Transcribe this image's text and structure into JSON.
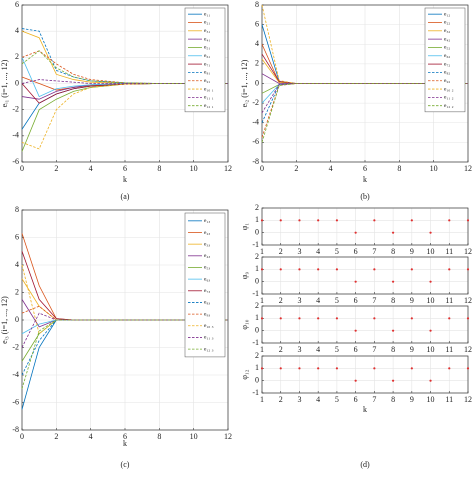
{
  "chart_data": [
    {
      "type": "line",
      "caption": "(a)",
      "x_label": "k",
      "y_label": "eᵢ₁ (i=1, ..., 12)",
      "x": [
        0,
        1,
        2,
        3,
        4,
        6,
        8,
        10,
        12
      ],
      "xlim": [
        0,
        12
      ],
      "xticks": [
        0,
        2,
        4,
        6,
        8,
        10,
        12
      ],
      "ylim": [
        -6,
        6
      ],
      "yticks": [
        -6,
        -4,
        -2,
        0,
        2,
        4,
        6
      ],
      "grid": true,
      "legend": "upper right",
      "series": [
        {
          "name": "e₁₁",
          "color": "#0072BD",
          "style": "solid",
          "values": [
            -3.5,
            -1.5,
            -0.8,
            -0.4,
            -0.2,
            -0.05,
            0,
            0,
            0
          ]
        },
        {
          "name": "e₂₁",
          "color": "#D95319",
          "style": "solid",
          "values": [
            0.5,
            0,
            -0.5,
            -0.3,
            -0.15,
            -0.04,
            0,
            0,
            0
          ]
        },
        {
          "name": "e₃₁",
          "color": "#EDB120",
          "style": "solid",
          "values": [
            4,
            3.5,
            0.7,
            0.3,
            0.1,
            0.02,
            0,
            0,
            0
          ]
        },
        {
          "name": "e₄₁",
          "color": "#7E2F8E",
          "style": "solid",
          "values": [
            -1,
            -1.2,
            -0.6,
            -0.3,
            -0.1,
            0,
            0,
            0,
            0
          ]
        },
        {
          "name": "e₅₁",
          "color": "#77AC30",
          "style": "solid",
          "values": [
            -5.2,
            -2,
            -1.2,
            -0.6,
            -0.3,
            -0.05,
            0,
            0,
            0
          ]
        },
        {
          "name": "e₆₁",
          "color": "#4DBEEE",
          "style": "solid",
          "values": [
            2,
            -1,
            -0.4,
            -0.2,
            -0.1,
            0,
            0,
            0,
            0
          ]
        },
        {
          "name": "e₇₁",
          "color": "#A2142F",
          "style": "solid",
          "values": [
            0,
            -1.5,
            -0.8,
            -0.4,
            -0.2,
            -0.05,
            0,
            0,
            0
          ]
        },
        {
          "name": "e₈₁",
          "color": "#0072BD",
          "style": "dashed",
          "values": [
            4.2,
            4,
            1,
            0.5,
            0.2,
            0.05,
            0,
            0,
            0
          ]
        },
        {
          "name": "e₉₁",
          "color": "#D95319",
          "style": "dashed",
          "values": [
            2,
            2.5,
            1.5,
            0.7,
            0.3,
            0.05,
            0,
            0,
            0
          ]
        },
        {
          "name": "e₁₀ ₁",
          "color": "#EDB120",
          "style": "dashed",
          "values": [
            -4.5,
            -5,
            -2,
            -0.8,
            -0.3,
            -0.05,
            0,
            0,
            0
          ]
        },
        {
          "name": "e₁₁ ₁",
          "color": "#7E2F8E",
          "style": "dashed",
          "values": [
            0,
            0.3,
            0.2,
            0.1,
            0,
            0,
            0,
            0,
            0
          ]
        },
        {
          "name": "e₁₂ ₁",
          "color": "#77AC30",
          "style": "dashed",
          "values": [
            1.5,
            2.5,
            1.2,
            0.5,
            0.2,
            0.05,
            0,
            0,
            0
          ]
        }
      ]
    },
    {
      "type": "line",
      "caption": "(b)",
      "x_label": "k",
      "y_label": "eᵢ₂ (i=1, ..., 12)",
      "x": [
        0,
        1,
        2,
        3,
        4,
        6,
        8,
        10,
        12
      ],
      "xlim": [
        0,
        12
      ],
      "xticks": [
        0,
        2,
        4,
        6,
        8,
        10,
        12
      ],
      "ylim": [
        -8,
        8
      ],
      "yticks": [
        -8,
        -6,
        -4,
        -2,
        0,
        2,
        4,
        6,
        8
      ],
      "grid": true,
      "legend": "upper right",
      "series": [
        {
          "name": "e₁₂",
          "color": "#0072BD",
          "style": "solid",
          "values": [
            6,
            0.2,
            0,
            0,
            0,
            0,
            0,
            0,
            0
          ]
        },
        {
          "name": "e₂₂",
          "color": "#D95319",
          "style": "solid",
          "values": [
            4,
            0.1,
            0,
            0,
            0,
            0,
            0,
            0,
            0
          ]
        },
        {
          "name": "e₃₂",
          "color": "#EDB120",
          "style": "solid",
          "values": [
            2.5,
            0.1,
            0,
            0,
            0,
            0,
            0,
            0,
            0
          ]
        },
        {
          "name": "e₄₂",
          "color": "#7E2F8E",
          "style": "solid",
          "values": [
            1,
            0,
            0,
            0,
            0,
            0,
            0,
            0,
            0
          ]
        },
        {
          "name": "e₅₂",
          "color": "#77AC30",
          "style": "solid",
          "values": [
            -1,
            -0.1,
            0,
            0,
            0,
            0,
            0,
            0,
            0
          ]
        },
        {
          "name": "e₆₂",
          "color": "#4DBEEE",
          "style": "solid",
          "values": [
            -2,
            -0.1,
            0,
            0,
            0,
            0,
            0,
            0,
            0
          ]
        },
        {
          "name": "e₇₂",
          "color": "#A2142F",
          "style": "solid",
          "values": [
            3,
            0.2,
            0,
            0,
            0,
            0,
            0,
            0,
            0
          ]
        },
        {
          "name": "e₈₂",
          "color": "#0072BD",
          "style": "dashed",
          "values": [
            -4,
            -0.1,
            0,
            0,
            0,
            0,
            0,
            0,
            0
          ]
        },
        {
          "name": "e₉₂",
          "color": "#D95319",
          "style": "dashed",
          "values": [
            -5.5,
            -0.2,
            0,
            0,
            0,
            0,
            0,
            0,
            0
          ]
        },
        {
          "name": "e₁₀ ₂",
          "color": "#EDB120",
          "style": "dashed",
          "values": [
            8,
            0.3,
            0,
            0,
            0,
            0,
            0,
            0,
            0
          ]
        },
        {
          "name": "e₁₁ ₂",
          "color": "#7E2F8E",
          "style": "dashed",
          "values": [
            -3,
            -0.1,
            0,
            0,
            0,
            0,
            0,
            0,
            0
          ]
        },
        {
          "name": "e₁₂ ₂",
          "color": "#77AC30",
          "style": "dashed",
          "values": [
            -6,
            -0.2,
            0,
            0,
            0,
            0,
            0,
            0,
            0
          ]
        }
      ]
    },
    {
      "type": "line",
      "caption": "(c)",
      "x_label": "k",
      "y_label": "eᵢ₃ (i=1, ..., 12)",
      "x": [
        0,
        1,
        2,
        3,
        4,
        6,
        8,
        10,
        12
      ],
      "xlim": [
        0,
        12
      ],
      "xticks": [
        0,
        2,
        4,
        6,
        8,
        10,
        12
      ],
      "ylim": [
        -8,
        8
      ],
      "yticks": [
        -8,
        -6,
        -4,
        -2,
        0,
        2,
        4,
        6,
        8
      ],
      "grid": true,
      "legend": "upper right",
      "series": [
        {
          "name": "e₁₃",
          "color": "#0072BD",
          "style": "solid",
          "values": [
            -6.5,
            -2,
            0,
            0,
            0,
            0,
            0,
            0,
            0
          ]
        },
        {
          "name": "e₂₃",
          "color": "#D95319",
          "style": "solid",
          "values": [
            6.3,
            2.5,
            0.1,
            0,
            0,
            0,
            0,
            0,
            0
          ]
        },
        {
          "name": "e₃₃",
          "color": "#EDB120",
          "style": "solid",
          "values": [
            3,
            1,
            0,
            0,
            0,
            0,
            0,
            0,
            0
          ]
        },
        {
          "name": "e₄₃",
          "color": "#7E2F8E",
          "style": "solid",
          "values": [
            1.5,
            -0.5,
            0,
            0,
            0,
            0,
            0,
            0,
            0
          ]
        },
        {
          "name": "e₅₃",
          "color": "#77AC30",
          "style": "solid",
          "values": [
            -3,
            -1,
            0,
            0,
            0,
            0,
            0,
            0,
            0
          ]
        },
        {
          "name": "e₆₃",
          "color": "#4DBEEE",
          "style": "solid",
          "values": [
            -1,
            -0.3,
            0,
            0,
            0,
            0,
            0,
            0,
            0
          ]
        },
        {
          "name": "e₇₃",
          "color": "#A2142F",
          "style": "solid",
          "values": [
            5,
            1.5,
            0.1,
            0,
            0,
            0,
            0,
            0,
            0
          ]
        },
        {
          "name": "e₈₃",
          "color": "#0072BD",
          "style": "dashed",
          "values": [
            -4,
            -1.5,
            0,
            0,
            0,
            0,
            0,
            0,
            0
          ]
        },
        {
          "name": "e₉₃",
          "color": "#D95319",
          "style": "dashed",
          "values": [
            0.5,
            1,
            0,
            0,
            0,
            0,
            0,
            0,
            0
          ]
        },
        {
          "name": "e₁₀ ₃",
          "color": "#EDB120",
          "style": "dashed",
          "values": [
            4,
            -1,
            0,
            0,
            0,
            0,
            0,
            0,
            0
          ]
        },
        {
          "name": "e₁₁ ₃",
          "color": "#7E2F8E",
          "style": "dashed",
          "values": [
            -2,
            0.5,
            0,
            0,
            0,
            0,
            0,
            0,
            0
          ]
        },
        {
          "name": "e₁₂ ₃",
          "color": "#77AC30",
          "style": "dashed",
          "values": [
            -5,
            -0.8,
            0,
            0,
            0,
            0,
            0,
            0,
            0
          ]
        }
      ]
    },
    {
      "type": "scatter",
      "x_label": "k",
      "y_label": "φ₁",
      "color": "#e03030",
      "x": [
        1,
        2,
        3,
        4,
        5,
        6,
        7,
        8,
        9,
        10,
        11,
        12
      ],
      "values": [
        1,
        1,
        1,
        1,
        1,
        0,
        1,
        0,
        1,
        0,
        1,
        1
      ],
      "xlim": [
        1,
        12
      ],
      "xticks": [
        1,
        2,
        3,
        4,
        5,
        6,
        7,
        8,
        9,
        10,
        11,
        12
      ],
      "ylim": [
        -1,
        2
      ],
      "yticks": [
        -1,
        0,
        1,
        2
      ],
      "grid": true
    },
    {
      "type": "scatter",
      "x_label": "k",
      "y_label": "φ₉",
      "color": "#e03030",
      "x": [
        1,
        2,
        3,
        4,
        5,
        6,
        7,
        8,
        9,
        10,
        11,
        12
      ],
      "values": [
        1,
        1,
        1,
        1,
        1,
        0,
        1,
        0,
        1,
        0,
        1,
        1
      ],
      "xlim": [
        1,
        12
      ],
      "xticks": [
        1,
        2,
        3,
        4,
        5,
        6,
        7,
        8,
        9,
        10,
        11,
        12
      ],
      "ylim": [
        -1,
        2
      ],
      "yticks": [
        -1,
        0,
        1,
        2
      ],
      "grid": true
    },
    {
      "type": "scatter",
      "x_label": "k",
      "y_label": "φ₁₀",
      "color": "#e03030",
      "x": [
        1,
        2,
        3,
        4,
        5,
        6,
        7,
        8,
        9,
        10,
        11,
        12
      ],
      "values": [
        1,
        1,
        1,
        1,
        1,
        0,
        1,
        0,
        1,
        0,
        1,
        1
      ],
      "xlim": [
        1,
        12
      ],
      "xticks": [
        1,
        2,
        3,
        4,
        5,
        6,
        7,
        8,
        9,
        10,
        11,
        12
      ],
      "ylim": [
        -1,
        2
      ],
      "yticks": [
        -1,
        0,
        1,
        2
      ],
      "grid": true
    },
    {
      "type": "scatter",
      "caption": "(d)",
      "x_label": "k",
      "y_label": "φ₁₂",
      "color": "#e03030",
      "x": [
        1,
        2,
        3,
        4,
        5,
        6,
        7,
        8,
        9,
        10,
        11,
        12
      ],
      "values": [
        1,
        1,
        1,
        1,
        1,
        0,
        1,
        0,
        1,
        0,
        1,
        1
      ],
      "xlim": [
        1,
        12
      ],
      "xticks": [
        1,
        2,
        3,
        4,
        5,
        6,
        7,
        8,
        9,
        10,
        11,
        12
      ],
      "ylim": [
        -1,
        2
      ],
      "yticks": [
        -1,
        0,
        1,
        2
      ],
      "grid": true
    }
  ]
}
